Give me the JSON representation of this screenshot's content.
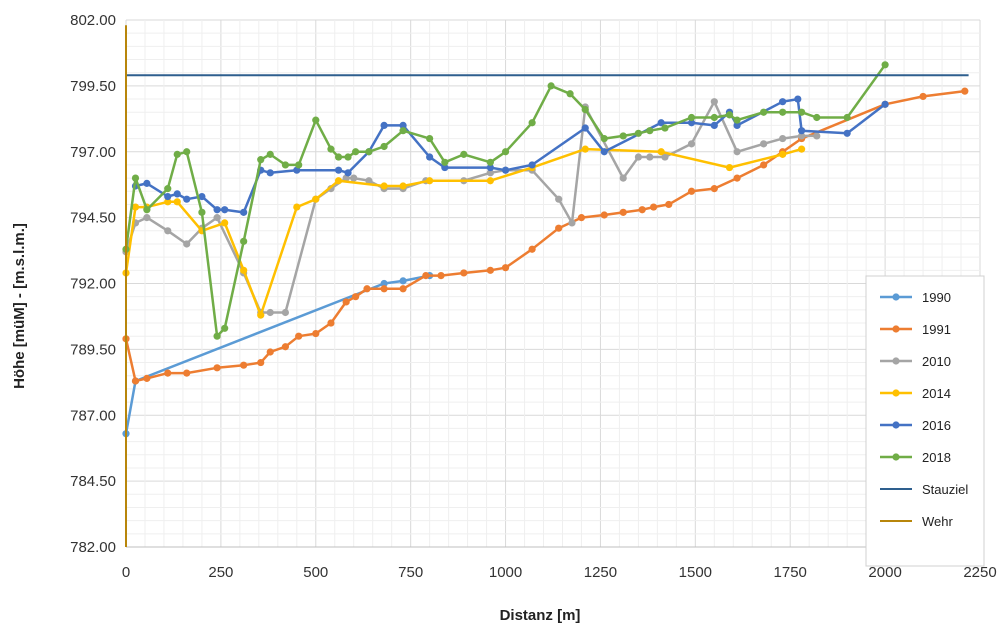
{
  "chart_data": {
    "type": "line",
    "xlabel": "Distanz [m]",
    "ylabel": "Höhe [müM] - [m.s.l.m.]",
    "xlim": [
      0,
      2250
    ],
    "ylim": [
      782,
      802
    ],
    "xticks": [
      0,
      250,
      500,
      750,
      1000,
      1250,
      1500,
      1750,
      2000,
      2250
    ],
    "xtick_labels": [
      "0",
      "250",
      "500",
      "750",
      "1000",
      "1250",
      "1500",
      "1750",
      "2000",
      "2250"
    ],
    "yticks": [
      782,
      784.5,
      787,
      789.5,
      792,
      794.5,
      797,
      799.5,
      802
    ],
    "ytick_labels": [
      "782.00",
      "784.50",
      "787.00",
      "789.50",
      "792.00",
      "794.50",
      "797.00",
      "799.50",
      "802.00"
    ],
    "grid": true,
    "legend_position": "right",
    "series": [
      {
        "name": "1990",
        "color": "#5b9bd5",
        "markers": true,
        "points": [
          [
            0,
            786.3
          ],
          [
            25,
            788.3
          ],
          [
            680,
            792.0
          ],
          [
            730,
            792.1
          ],
          [
            800,
            792.3
          ]
        ]
      },
      {
        "name": "1991",
        "color": "#ed7d31",
        "markers": true,
        "points": [
          [
            0,
            789.9
          ],
          [
            25,
            788.3
          ],
          [
            55,
            788.4
          ],
          [
            110,
            788.6
          ],
          [
            160,
            788.6
          ],
          [
            240,
            788.8
          ],
          [
            310,
            788.9
          ],
          [
            355,
            789.0
          ],
          [
            380,
            789.4
          ],
          [
            420,
            789.6
          ],
          [
            455,
            790.0
          ],
          [
            500,
            790.1
          ],
          [
            540,
            790.5
          ],
          [
            580,
            791.3
          ],
          [
            605,
            791.5
          ],
          [
            635,
            791.8
          ],
          [
            680,
            791.8
          ],
          [
            730,
            791.8
          ],
          [
            790,
            792.3
          ],
          [
            830,
            792.3
          ],
          [
            890,
            792.4
          ],
          [
            960,
            792.5
          ],
          [
            1000,
            792.6
          ],
          [
            1070,
            793.3
          ],
          [
            1140,
            794.1
          ],
          [
            1200,
            794.5
          ],
          [
            1260,
            794.6
          ],
          [
            1310,
            794.7
          ],
          [
            1360,
            794.8
          ],
          [
            1390,
            794.9
          ],
          [
            1430,
            795.0
          ],
          [
            1490,
            795.5
          ],
          [
            1550,
            795.6
          ],
          [
            1610,
            796.0
          ],
          [
            1680,
            796.5
          ],
          [
            1730,
            797.0
          ],
          [
            1780,
            797.5
          ],
          [
            2000,
            798.8
          ],
          [
            2100,
            799.1
          ],
          [
            2210,
            799.3
          ]
        ]
      },
      {
        "name": "2010",
        "color": "#a5a5a5",
        "markers": true,
        "points": [
          [
            0,
            793.2
          ],
          [
            25,
            794.3
          ],
          [
            55,
            794.5
          ],
          [
            110,
            794.0
          ],
          [
            160,
            793.5
          ],
          [
            200,
            794.1
          ],
          [
            240,
            794.5
          ],
          [
            310,
            792.4
          ],
          [
            355,
            790.9
          ],
          [
            380,
            790.9
          ],
          [
            420,
            790.9
          ],
          [
            500,
            795.2
          ],
          [
            540,
            795.6
          ],
          [
            580,
            796.0
          ],
          [
            600,
            796.0
          ],
          [
            640,
            795.9
          ],
          [
            680,
            795.6
          ],
          [
            730,
            795.6
          ],
          [
            790,
            795.9
          ],
          [
            890,
            795.9
          ],
          [
            960,
            796.2
          ],
          [
            1000,
            796.3
          ],
          [
            1070,
            796.3
          ],
          [
            1140,
            795.2
          ],
          [
            1175,
            794.3
          ],
          [
            1210,
            798.7
          ],
          [
            1310,
            796.0
          ],
          [
            1350,
            796.8
          ],
          [
            1380,
            796.8
          ],
          [
            1420,
            796.8
          ],
          [
            1490,
            797.3
          ],
          [
            1550,
            798.9
          ],
          [
            1610,
            797.0
          ],
          [
            1680,
            797.3
          ],
          [
            1730,
            797.5
          ],
          [
            1780,
            797.6
          ],
          [
            1820,
            797.6
          ]
        ]
      },
      {
        "name": "2014",
        "color": "#ffc000",
        "markers": true,
        "points": [
          [
            0,
            792.4
          ],
          [
            25,
            794.9
          ],
          [
            55,
            794.9
          ],
          [
            110,
            795.1
          ],
          [
            135,
            795.1
          ],
          [
            200,
            794.0
          ],
          [
            260,
            794.3
          ],
          [
            310,
            792.5
          ],
          [
            355,
            790.8
          ],
          [
            450,
            794.9
          ],
          [
            500,
            795.2
          ],
          [
            560,
            795.9
          ],
          [
            680,
            795.7
          ],
          [
            730,
            795.7
          ],
          [
            800,
            795.9
          ],
          [
            960,
            795.9
          ],
          [
            1070,
            796.4
          ],
          [
            1210,
            797.1
          ],
          [
            1410,
            797.0
          ],
          [
            1590,
            796.4
          ],
          [
            1730,
            796.9
          ],
          [
            1780,
            797.1
          ]
        ]
      },
      {
        "name": "2016",
        "color": "#4472c4",
        "markers": true,
        "points": [
          [
            25,
            795.7
          ],
          [
            55,
            795.8
          ],
          [
            110,
            795.3
          ],
          [
            135,
            795.4
          ],
          [
            160,
            795.2
          ],
          [
            200,
            795.3
          ],
          [
            240,
            794.8
          ],
          [
            260,
            794.8
          ],
          [
            310,
            794.7
          ],
          [
            355,
            796.3
          ],
          [
            380,
            796.2
          ],
          [
            450,
            796.3
          ],
          [
            560,
            796.3
          ],
          [
            585,
            796.2
          ],
          [
            640,
            797.0
          ],
          [
            680,
            798.0
          ],
          [
            730,
            798.0
          ],
          [
            800,
            796.8
          ],
          [
            840,
            796.4
          ],
          [
            960,
            796.4
          ],
          [
            1000,
            796.3
          ],
          [
            1070,
            796.5
          ],
          [
            1210,
            797.9
          ],
          [
            1260,
            797.0
          ],
          [
            1410,
            798.1
          ],
          [
            1490,
            798.1
          ],
          [
            1550,
            798.0
          ],
          [
            1590,
            798.5
          ],
          [
            1610,
            798.0
          ],
          [
            1730,
            798.9
          ],
          [
            1770,
            799.0
          ],
          [
            1780,
            797.8
          ],
          [
            1900,
            797.7
          ],
          [
            2000,
            798.8
          ]
        ]
      },
      {
        "name": "2018",
        "color": "#70ad47",
        "markers": true,
        "points": [
          [
            0,
            793.3
          ],
          [
            25,
            796.0
          ],
          [
            55,
            794.8
          ],
          [
            110,
            795.6
          ],
          [
            135,
            796.9
          ],
          [
            160,
            797.0
          ],
          [
            200,
            794.7
          ],
          [
            240,
            790.0
          ],
          [
            260,
            790.3
          ],
          [
            310,
            793.6
          ],
          [
            355,
            796.7
          ],
          [
            380,
            796.9
          ],
          [
            420,
            796.5
          ],
          [
            455,
            796.5
          ],
          [
            500,
            798.2
          ],
          [
            540,
            797.1
          ],
          [
            560,
            796.8
          ],
          [
            585,
            796.8
          ],
          [
            605,
            797.0
          ],
          [
            640,
            797.0
          ],
          [
            680,
            797.2
          ],
          [
            730,
            797.8
          ],
          [
            800,
            797.5
          ],
          [
            840,
            796.6
          ],
          [
            890,
            796.9
          ],
          [
            960,
            796.6
          ],
          [
            1000,
            797.0
          ],
          [
            1070,
            798.1
          ],
          [
            1120,
            799.5
          ],
          [
            1170,
            799.2
          ],
          [
            1210,
            798.6
          ],
          [
            1260,
            797.5
          ],
          [
            1310,
            797.6
          ],
          [
            1350,
            797.7
          ],
          [
            1380,
            797.8
          ],
          [
            1420,
            797.9
          ],
          [
            1490,
            798.3
          ],
          [
            1550,
            798.3
          ],
          [
            1590,
            798.4
          ],
          [
            1610,
            798.2
          ],
          [
            1680,
            798.5
          ],
          [
            1730,
            798.5
          ],
          [
            1780,
            798.5
          ],
          [
            1820,
            798.3
          ],
          [
            1900,
            798.3
          ],
          [
            2000,
            800.3
          ]
        ]
      },
      {
        "name": "Stauziel",
        "color": "#2e5f8e",
        "markers": false,
        "points": [
          [
            0,
            799.9
          ],
          [
            2220,
            799.9
          ]
        ]
      },
      {
        "name": "Wehr",
        "color": "#b8860b",
        "markers": false,
        "points": [
          [
            0,
            782.0
          ],
          [
            0,
            801.8
          ]
        ]
      }
    ]
  }
}
